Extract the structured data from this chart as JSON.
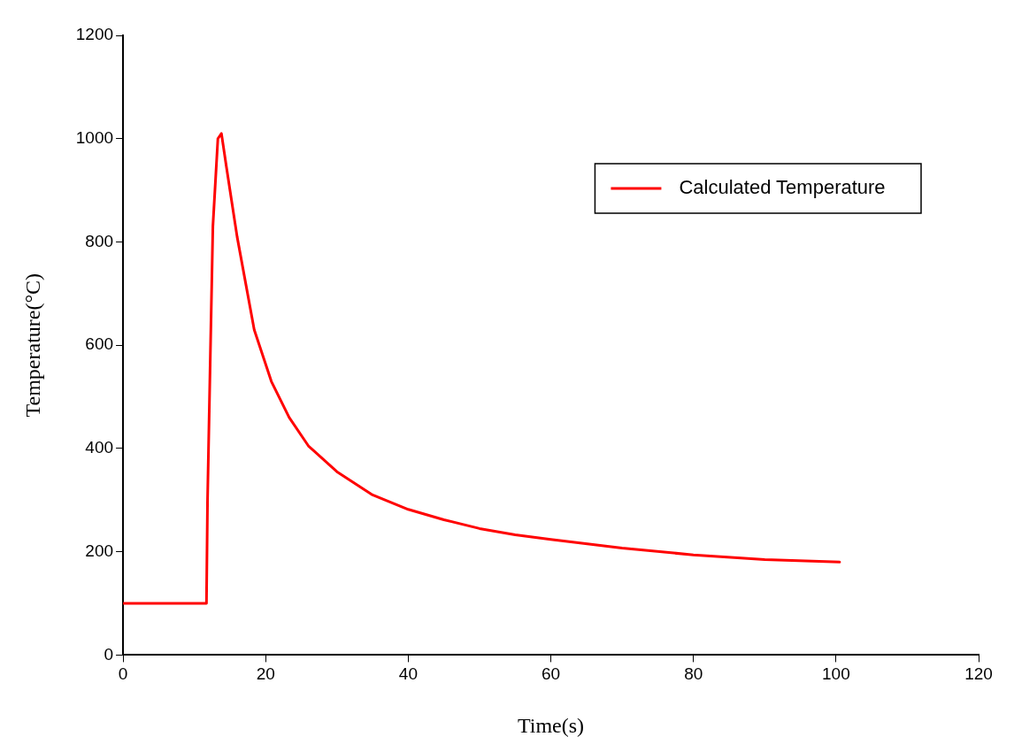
{
  "chart_data": {
    "type": "line",
    "xlabel": "Time(s)",
    "ylabel": "Temperature(°C)",
    "xlim": [
      0,
      120
    ],
    "xticks": [
      0,
      20,
      40,
      60,
      80,
      100,
      120
    ],
    "ylim": [
      0,
      1200
    ],
    "yticks": [
      0,
      200,
      400,
      600,
      800,
      1000,
      1200
    ],
    "grid": false,
    "legend": "top right",
    "marker": "none",
    "line_style": "solid",
    "series": [
      {
        "name": "Calculated Temperature",
        "color": "#ff0000",
        "x": [
          0,
          11.7,
          11.85,
          12.2,
          12.6,
          13.3,
          13.8,
          14.5,
          16,
          18.4,
          20.8,
          23.3,
          26,
          30,
          35,
          40,
          45,
          50,
          55,
          60,
          70,
          80,
          90,
          100.5
        ],
        "values": [
          100,
          100,
          300,
          550,
          830,
          1000,
          1010,
          945,
          810,
          630,
          530,
          460,
          405,
          355,
          310,
          282,
          262,
          245,
          233,
          224,
          207,
          194,
          185,
          180
        ]
      }
    ]
  }
}
